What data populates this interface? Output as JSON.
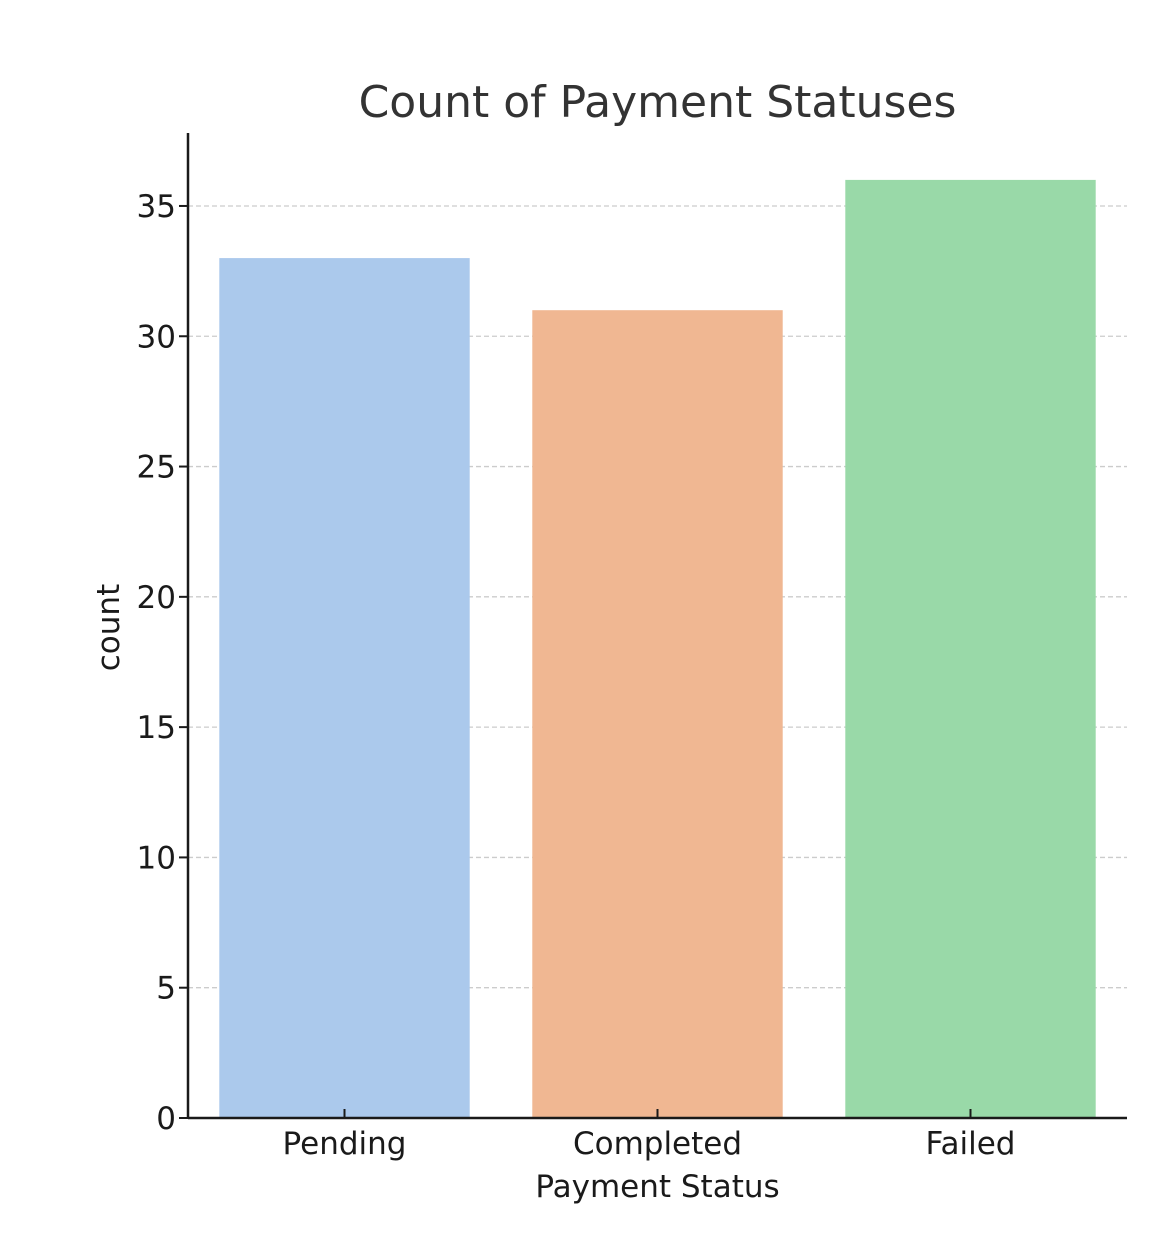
{
  "chart_data": {
    "type": "bar",
    "title": "Count of Payment Statuses",
    "xlabel": "Payment Status",
    "ylabel": "count",
    "categories": [
      "Pending",
      "Completed",
      "Failed"
    ],
    "values": [
      33,
      31,
      36
    ],
    "colors": [
      "#abc9ec",
      "#f0b792",
      "#99d9a8"
    ],
    "ylim": [
      0,
      37.8
    ],
    "yticks": [
      0,
      5,
      10,
      15,
      20,
      25,
      30,
      35
    ],
    "grid": true,
    "grid_axis": "y",
    "grid_style": "dashed",
    "grid_color": "#cccccc",
    "text_color": "#333333",
    "axis_color": "#1a1a1a"
  }
}
